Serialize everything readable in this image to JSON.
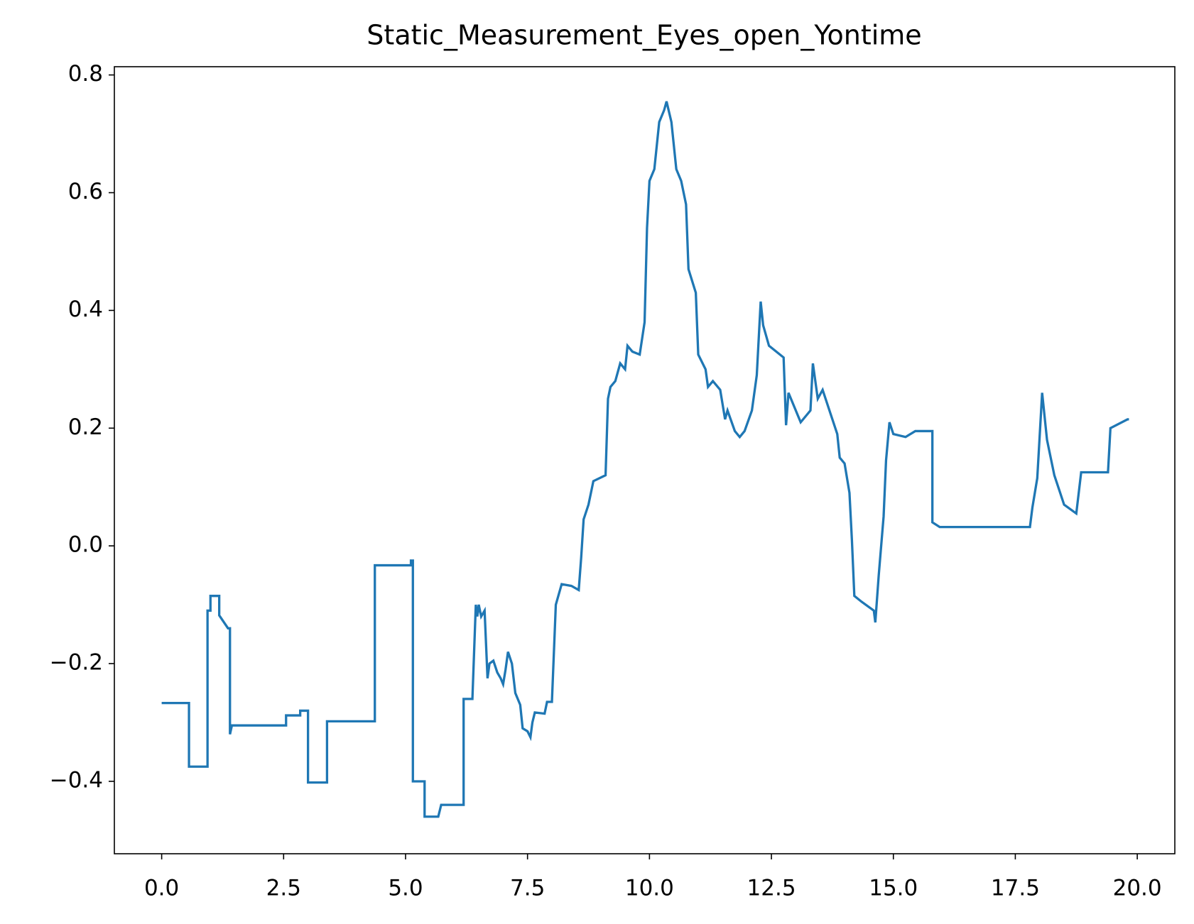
{
  "chart_data": {
    "type": "line",
    "title": "Static_Measurement_Eyes_open_Yontime",
    "x": [
      0,
      0.56,
      0.56,
      0.94,
      0.94,
      1.0,
      1.0,
      1.18,
      1.18,
      1.36,
      1.4,
      1.4,
      1.44,
      2.55,
      2.55,
      2.84,
      2.84,
      3.0,
      3.0,
      3.39,
      3.39,
      4.37,
      4.37,
      5.11,
      5.11,
      5.15,
      5.15,
      5.39,
      5.39,
      5.67,
      5.73,
      6.19,
      6.19,
      6.37,
      6.44,
      6.47,
      6.5,
      6.55,
      6.62,
      6.68,
      6.72,
      6.8,
      6.88,
      6.95,
      7.0,
      7.05,
      7.1,
      7.18,
      7.25,
      7.35,
      7.4,
      7.5,
      7.56,
      7.6,
      7.65,
      7.85,
      7.9,
      8.0,
      8.08,
      8.2,
      8.4,
      8.55,
      8.6,
      8.65,
      8.75,
      8.85,
      9.1,
      9.15,
      9.2,
      9.3,
      9.4,
      9.5,
      9.55,
      9.65,
      9.8,
      9.9,
      9.95,
      10.0,
      10.1,
      10.2,
      10.3,
      10.35,
      10.45,
      10.55,
      10.65,
      10.75,
      10.8,
      10.95,
      11.0,
      11.15,
      11.2,
      11.3,
      11.45,
      11.55,
      11.6,
      11.75,
      11.85,
      11.95,
      12.1,
      12.2,
      12.28,
      12.33,
      12.45,
      12.75,
      12.8,
      12.85,
      12.95,
      13.05,
      13.1,
      13.3,
      13.35,
      13.45,
      13.55,
      13.75,
      13.85,
      13.9,
      14.0,
      14.1,
      14.15,
      14.2,
      14.35,
      14.6,
      14.63,
      14.7,
      14.8,
      14.85,
      14.92,
      15.0,
      15.25,
      15.45,
      15.8,
      15.8,
      15.95,
      17.8,
      17.85,
      17.95,
      18.05,
      18.15,
      18.3,
      18.5,
      18.75,
      18.85,
      19.4,
      19.45,
      19.8,
      19.83
    ],
    "series": [
      {
        "color": "#1f77b4",
        "values": [
          -0.267,
          -0.267,
          -0.375,
          -0.375,
          -0.11,
          -0.11,
          -0.085,
          -0.085,
          -0.118,
          -0.14,
          -0.14,
          -0.32,
          -0.305,
          -0.305,
          -0.288,
          -0.288,
          -0.28,
          -0.28,
          -0.402,
          -0.402,
          -0.298,
          -0.298,
          -0.033,
          -0.033,
          -0.025,
          -0.025,
          -0.4,
          -0.4,
          -0.46,
          -0.46,
          -0.44,
          -0.44,
          -0.26,
          -0.26,
          -0.1,
          -0.12,
          -0.1,
          -0.12,
          -0.11,
          -0.225,
          -0.2,
          -0.195,
          -0.215,
          -0.225,
          -0.235,
          -0.21,
          -0.18,
          -0.2,
          -0.25,
          -0.27,
          -0.31,
          -0.315,
          -0.325,
          -0.3,
          -0.283,
          -0.285,
          -0.265,
          -0.265,
          -0.1,
          -0.065,
          -0.068,
          -0.075,
          -0.02,
          0.045,
          0.07,
          0.11,
          0.12,
          0.25,
          0.27,
          0.28,
          0.31,
          0.3,
          0.34,
          0.33,
          0.325,
          0.38,
          0.54,
          0.62,
          0.64,
          0.72,
          0.74,
          0.755,
          0.72,
          0.64,
          0.62,
          0.58,
          0.47,
          0.43,
          0.325,
          0.3,
          0.27,
          0.28,
          0.265,
          0.215,
          0.23,
          0.195,
          0.185,
          0.195,
          0.23,
          0.29,
          0.415,
          0.375,
          0.34,
          0.32,
          0.205,
          0.26,
          0.24,
          0.22,
          0.21,
          0.23,
          0.31,
          0.25,
          0.265,
          0.215,
          0.19,
          0.15,
          0.14,
          0.09,
          0.01,
          -0.085,
          -0.095,
          -0.11,
          -0.13,
          -0.05,
          0.05,
          0.145,
          0.21,
          0.19,
          0.185,
          0.195,
          0.195,
          0.04,
          0.032,
          0.032,
          0.065,
          0.115,
          0.26,
          0.18,
          0.12,
          0.07,
          0.055,
          0.125,
          0.125,
          0.2,
          0.215,
          0.215
        ]
      }
    ],
    "xlim": [
      -0.97,
      20.77
    ],
    "ylim": [
      -0.523,
      0.814
    ],
    "xticks": [
      {
        "value": 0,
        "label": "0.0"
      },
      2.5,
      {
        "value": 5,
        "label": "5.0"
      },
      7.5,
      {
        "value": 10,
        "label": "10.0"
      },
      12.5,
      {
        "value": 15,
        "label": "15.0"
      },
      17.5,
      {
        "value": 20,
        "label": "20.0"
      }
    ],
    "yticks": [
      {
        "value": -0.4,
        "label": "−0.4"
      },
      {
        "value": -0.2,
        "label": "−0.2"
      },
      {
        "value": 0,
        "label": "0.0"
      },
      0.2,
      0.4,
      0.6,
      0.8
    ],
    "grid": false
  }
}
